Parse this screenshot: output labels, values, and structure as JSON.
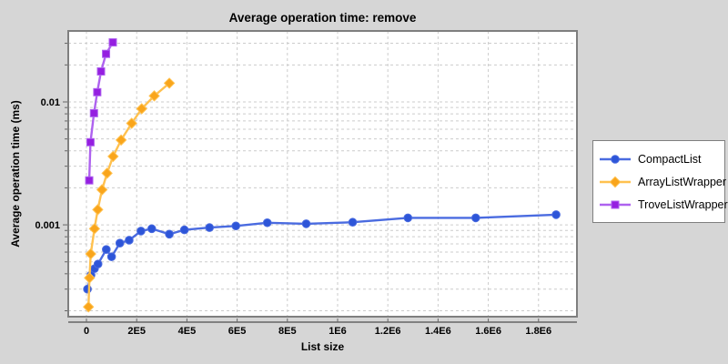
{
  "title": "Average operation time: remove",
  "colors": {
    "panel_background": "#d6d6d6",
    "plot_background": "#ffffff",
    "gridline": "#cccccc",
    "plot_border": "#7f7f7f",
    "axis_line": "#666666",
    "text": "#000000",
    "legend_border": "#7f7f7f",
    "legend_background": "#ffffff"
  },
  "chart_data": {
    "type": "line",
    "title": "Average operation time: remove",
    "xlabel": "List size",
    "ylabel": "Average operation time (ms)",
    "yscale": "log",
    "grid": true,
    "legend_position": "right",
    "xlim": [
      -72500,
      1953000
    ],
    "ylim": [
      0.000179,
      0.0378
    ],
    "xtick_values": [
      0,
      200000,
      400000,
      600000,
      800000,
      1000000,
      1200000,
      1400000,
      1600000,
      1800000
    ],
    "xtick_labels": [
      "0",
      "2E5",
      "4E5",
      "6E5",
      "8E5",
      "1E6",
      "1.2E6",
      "1.4E6",
      "1.6E6",
      "1.8E6"
    ],
    "ytick_values": [
      0.01,
      0.001
    ],
    "ytick_labels": [
      "0.01",
      "0.001"
    ],
    "series": [
      {
        "name": "CompactList",
        "marker": "circle",
        "line_color": "#4a6be0",
        "marker_color": "#2d55d8",
        "points": [
          [
            4000,
            0.0003
          ],
          [
            18000,
            0.00039
          ],
          [
            32000,
            0.00044
          ],
          [
            46000,
            0.00048
          ],
          [
            79000,
            0.00063
          ],
          [
            100000,
            0.00055
          ],
          [
            133000,
            0.00071
          ],
          [
            170000,
            0.00075
          ],
          [
            217000,
            0.00089
          ],
          [
            260000,
            0.00093
          ],
          [
            330000,
            0.00084
          ],
          [
            390000,
            0.00091
          ],
          [
            490000,
            0.00095
          ],
          [
            595000,
            0.00098
          ],
          [
            720000,
            0.00104
          ],
          [
            875000,
            0.00102
          ],
          [
            1060000,
            0.00105
          ],
          [
            1280000,
            0.00114
          ],
          [
            1550000,
            0.00114
          ],
          [
            1870000,
            0.00121
          ]
        ]
      },
      {
        "name": "ArrayListWrapper",
        "marker": "diamond",
        "line_color": "#ffc14f",
        "marker_color": "#f9a51b",
        "points": [
          [
            8000,
            0.000215
          ],
          [
            12000,
            0.00037
          ],
          [
            17000,
            0.00058
          ],
          [
            32000,
            0.00093
          ],
          [
            45000,
            0.00133
          ],
          [
            62000,
            0.00193
          ],
          [
            82000,
            0.00263
          ],
          [
            106000,
            0.0036
          ],
          [
            138000,
            0.0049
          ],
          [
            180000,
            0.0067
          ],
          [
            220000,
            0.0088
          ],
          [
            270000,
            0.0112
          ],
          [
            330000,
            0.0142
          ]
        ]
      },
      {
        "name": "TroveListWrapper",
        "marker": "square",
        "line_color": "#ae62ef",
        "marker_color": "#951fe0",
        "points": [
          [
            11000,
            0.0023
          ],
          [
            16000,
            0.0047
          ],
          [
            30000,
            0.0081
          ],
          [
            43000,
            0.012
          ],
          [
            58000,
            0.0177
          ],
          [
            78000,
            0.0246
          ],
          [
            105000,
            0.0305
          ]
        ]
      }
    ]
  }
}
